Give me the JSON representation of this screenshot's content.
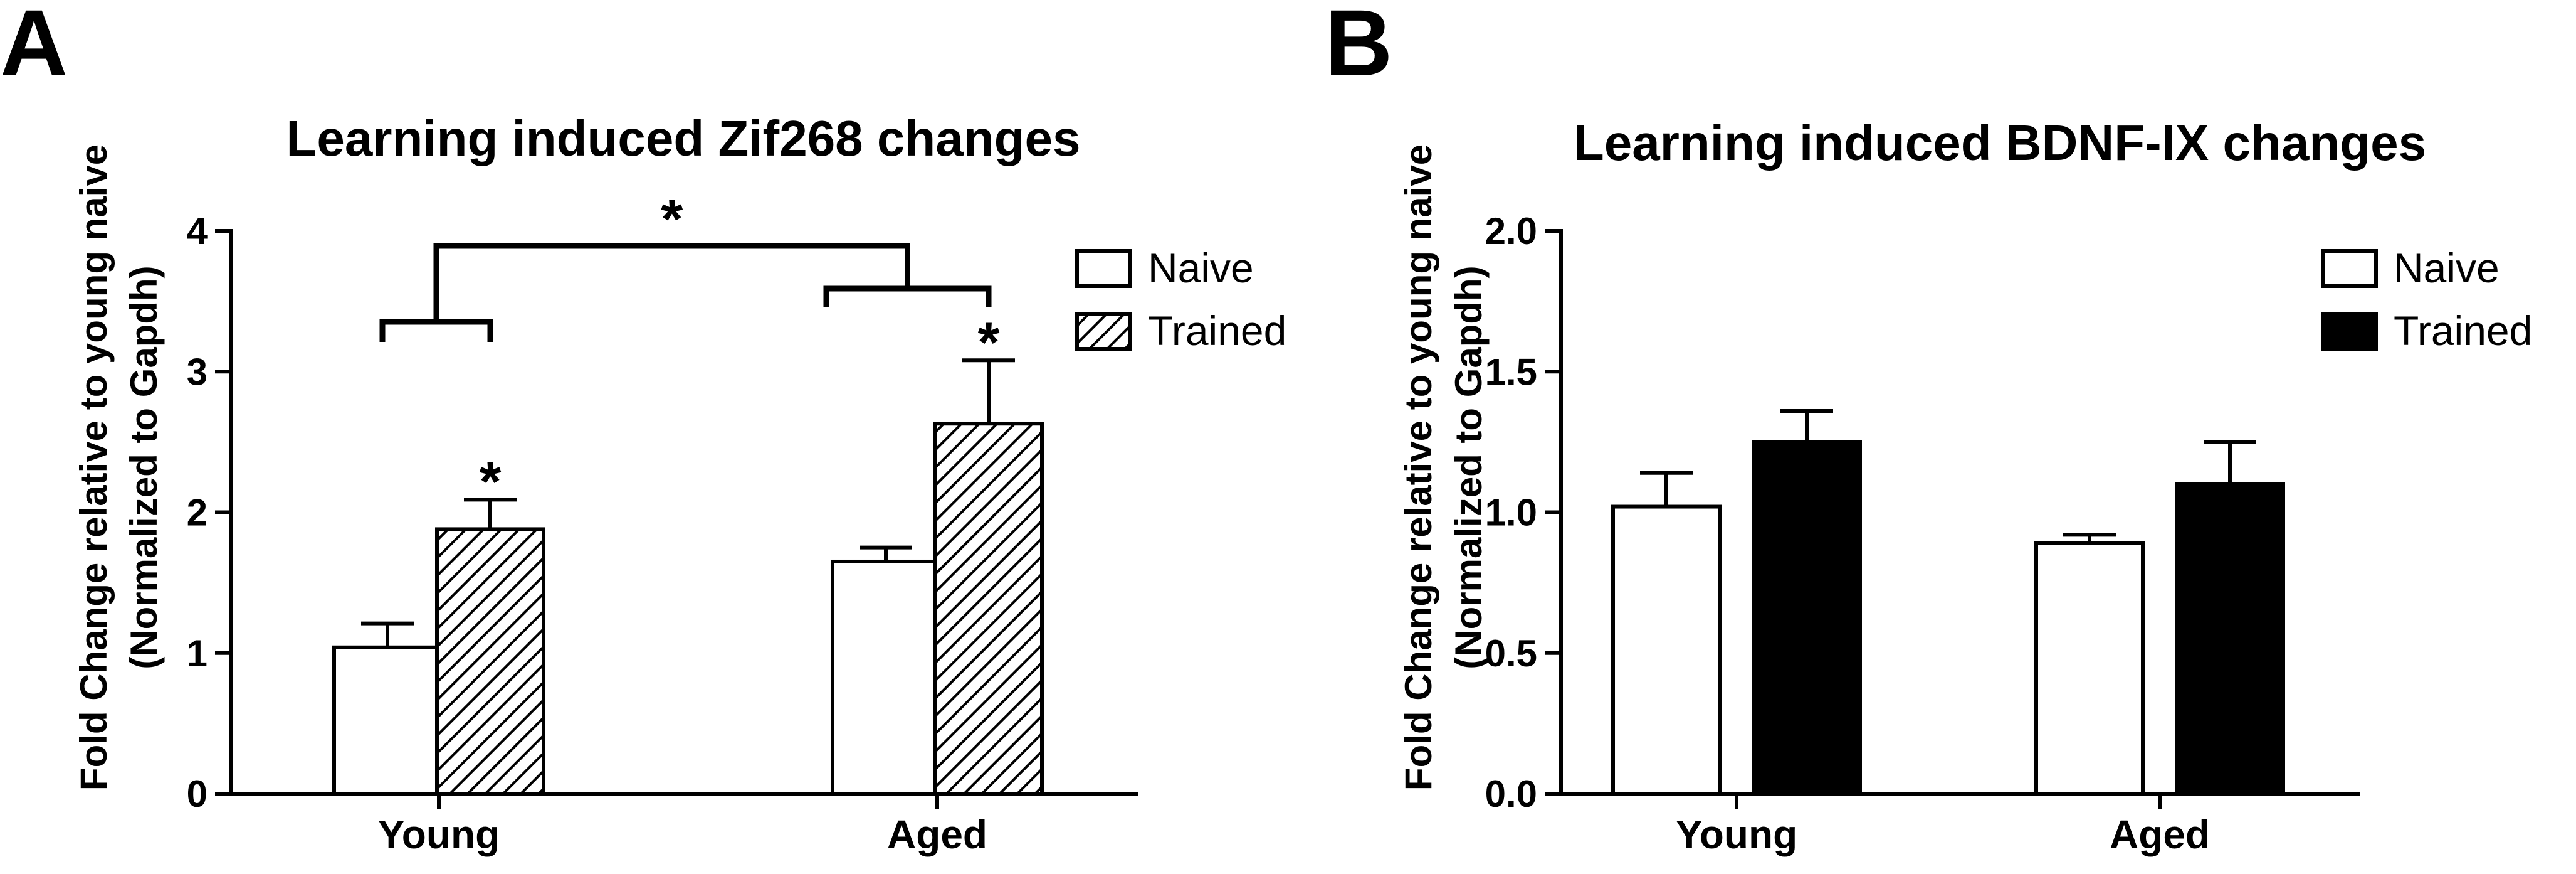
{
  "panels": [
    {
      "letter": "A",
      "chart_data": {
        "type": "bar",
        "title": "Learning induced Zif268 changes",
        "ylabel_line1": "Fold Change relative to young naive",
        "ylabel_line2": "(Normalized to Gapdh)",
        "xlabel": "",
        "categories": [
          "Young",
          "Aged"
        ],
        "ylim": [
          0,
          4
        ],
        "yticks": [
          0,
          1,
          2,
          3,
          4
        ],
        "ytick_labels": [
          "0",
          "1",
          "2",
          "3",
          "4"
        ],
        "series": [
          {
            "name": "Naive",
            "fill": "white",
            "values": [
              1.04,
              1.65
            ],
            "errors": [
              0.17,
              0.1
            ]
          },
          {
            "name": "Trained",
            "fill": "hatched",
            "values": [
              1.88,
              2.63
            ],
            "errors": [
              0.21,
              0.45
            ]
          }
        ],
        "annotations": {
          "bar_stars": [
            {
              "series": 1,
              "category": 0,
              "text": "*"
            },
            {
              "series": 1,
              "category": 1,
              "text": "*"
            }
          ],
          "comparison": {
            "text": "*",
            "between": [
              "Young",
              "Aged"
            ]
          }
        },
        "legend": {
          "position": "top-right"
        }
      }
    },
    {
      "letter": "B",
      "chart_data": {
        "type": "bar",
        "title": "Learning induced BDNF-IX changes",
        "ylabel_line1": "Fold Change relative to young naive",
        "ylabel_line2": "(Normalized to Gapdh)",
        "xlabel": "",
        "categories": [
          "Young",
          "Aged"
        ],
        "ylim": [
          0,
          2.0
        ],
        "yticks": [
          0,
          0.5,
          1.0,
          1.5,
          2.0
        ],
        "ytick_labels": [
          "0.0",
          "0.5",
          "1.0",
          "1.5",
          "2.0"
        ],
        "series": [
          {
            "name": "Naive",
            "fill": "white",
            "values": [
              1.02,
              0.89
            ],
            "errors": [
              0.12,
              0.03
            ]
          },
          {
            "name": "Trained",
            "fill": "black",
            "values": [
              1.25,
              1.1
            ],
            "errors": [
              0.11,
              0.15
            ]
          }
        ],
        "annotations": {
          "bar_stars": []
        },
        "legend": {
          "position": "top-right"
        }
      }
    }
  ]
}
